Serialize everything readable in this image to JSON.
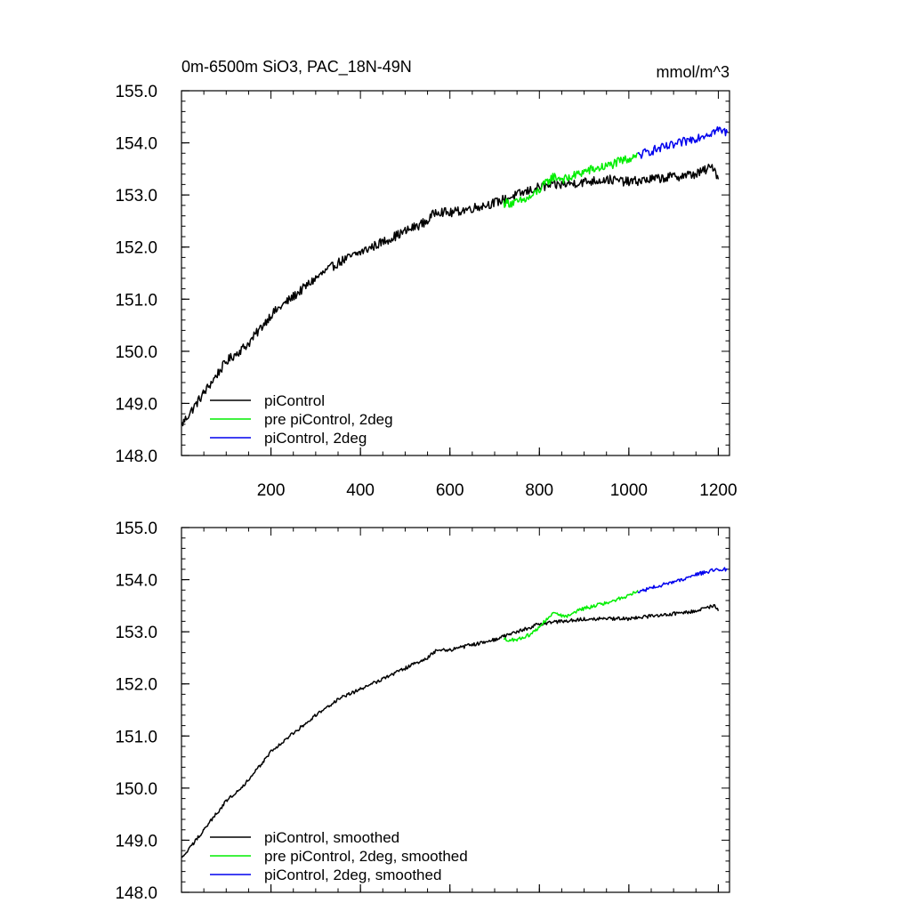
{
  "chart_data": [
    {
      "type": "line",
      "title": "0m-6500m SiO3, PAC_18N-49N",
      "units": "mmol/m^3",
      "xlim": [
        0,
        1225
      ],
      "ylim": [
        148.0,
        155.0
      ],
      "yticks": [
        148.0,
        149.0,
        150.0,
        151.0,
        152.0,
        153.0,
        154.0,
        155.0
      ],
      "ytick_labels": [
        "148.0",
        "149.0",
        "150.0",
        "151.0",
        "152.0",
        "153.0",
        "154.0",
        "155.0"
      ],
      "xticks": [
        200,
        400,
        600,
        800,
        1000,
        1200
      ],
      "xtick_labels": [
        "200",
        "400",
        "600",
        "800",
        "1000",
        "1200"
      ],
      "grid": false,
      "legend_position": "bottom-left",
      "noise": 0.09,
      "series": [
        {
          "name": "piControl",
          "color": "#000000",
          "x": [
            1,
            50,
            100,
            150,
            200,
            250,
            300,
            350,
            400,
            450,
            500,
            550,
            570,
            600,
            650,
            700,
            750,
            800,
            850,
            900,
            950,
            1000,
            1050,
            1100,
            1150,
            1190,
            1200
          ],
          "y": [
            148.6,
            149.2,
            149.8,
            150.15,
            150.7,
            151.05,
            151.4,
            151.7,
            151.9,
            152.1,
            152.3,
            152.5,
            152.7,
            152.65,
            152.75,
            152.85,
            153.0,
            153.15,
            153.2,
            153.25,
            153.3,
            153.25,
            153.3,
            153.35,
            153.4,
            153.55,
            153.3
          ]
        },
        {
          "name": "pre piControl, 2deg",
          "color": "#00ee00",
          "x": [
            720,
            750,
            780,
            800,
            830,
            860,
            900,
            950,
            1000,
            1020
          ],
          "y": [
            152.85,
            152.85,
            152.95,
            153.1,
            153.35,
            153.3,
            153.45,
            153.55,
            153.7,
            153.8
          ]
        },
        {
          "name": "piControl, 2deg",
          "color": "#0000ee",
          "x": [
            1020,
            1050,
            1100,
            1150,
            1200,
            1220
          ],
          "y": [
            153.75,
            153.85,
            153.95,
            154.1,
            154.25,
            154.2
          ]
        }
      ],
      "legend": [
        "piControl",
        "pre piControl, 2deg",
        "piControl, 2deg"
      ]
    },
    {
      "type": "line",
      "title": "",
      "xlim": [
        0,
        1225
      ],
      "ylim": [
        148.0,
        155.0
      ],
      "yticks": [
        148.0,
        149.0,
        150.0,
        151.0,
        152.0,
        153.0,
        154.0,
        155.0
      ],
      "ytick_labels": [
        "148.0",
        "149.0",
        "150.0",
        "151.0",
        "152.0",
        "153.0",
        "154.0",
        "155.0"
      ],
      "xticks": [
        200,
        400,
        600,
        800,
        1000,
        1200
      ],
      "xtick_labels": [],
      "grid": false,
      "legend_position": "bottom-left",
      "noise": 0.035,
      "series": [
        {
          "name": "piControl, smoothed",
          "color": "#000000",
          "x": [
            1,
            50,
            100,
            150,
            200,
            250,
            300,
            350,
            400,
            450,
            500,
            550,
            570,
            600,
            650,
            700,
            750,
            800,
            850,
            900,
            950,
            1000,
            1050,
            1100,
            1150,
            1190,
            1200
          ],
          "y": [
            148.65,
            149.2,
            149.75,
            150.15,
            150.7,
            151.05,
            151.4,
            151.7,
            151.9,
            152.1,
            152.3,
            152.5,
            152.65,
            152.65,
            152.75,
            152.85,
            153.0,
            153.15,
            153.2,
            153.25,
            153.25,
            153.25,
            153.3,
            153.35,
            153.4,
            153.5,
            153.4
          ]
        },
        {
          "name": "pre piControl, 2deg, smoothed",
          "color": "#00ee00",
          "x": [
            720,
            750,
            780,
            800,
            830,
            860,
            900,
            950,
            1000,
            1020
          ],
          "y": [
            152.85,
            152.85,
            152.95,
            153.1,
            153.35,
            153.3,
            153.45,
            153.55,
            153.7,
            153.8
          ]
        },
        {
          "name": "piControl, 2deg, smoothed",
          "color": "#0000ee",
          "x": [
            1020,
            1050,
            1100,
            1150,
            1200,
            1220
          ],
          "y": [
            153.75,
            153.85,
            153.95,
            154.1,
            154.2,
            154.2
          ]
        }
      ],
      "legend": [
        "piControl, smoothed",
        "pre piControl, 2deg, smoothed",
        "piControl, 2deg, smoothed"
      ]
    }
  ]
}
